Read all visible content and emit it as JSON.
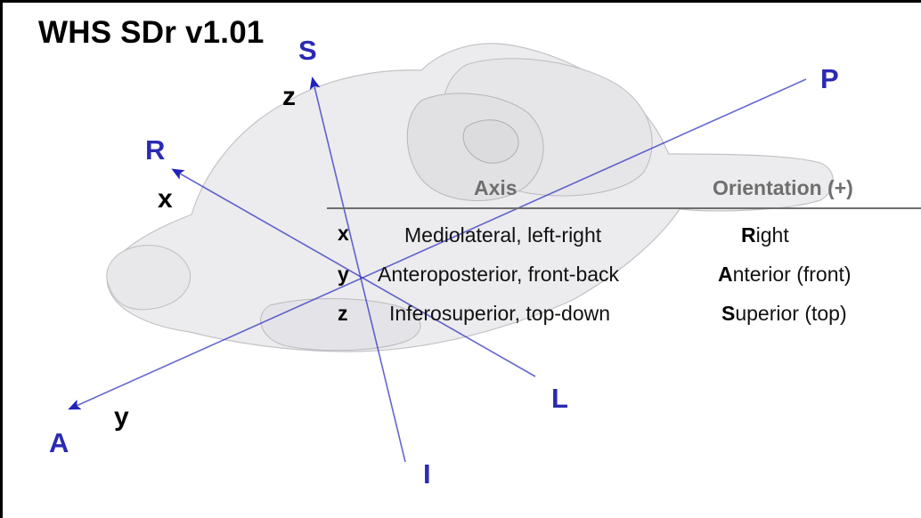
{
  "title": "WHS SDr v1.01",
  "axes": {
    "x": {
      "var_label": "x",
      "positive_label": "R",
      "negative_label": "L"
    },
    "y": {
      "var_label": "y",
      "positive_label": "A",
      "negative_label": "P"
    },
    "z": {
      "var_label": "z",
      "positive_label": "S",
      "negative_label": "I"
    }
  },
  "colors": {
    "axis_color": "#2222bb",
    "label_color": "#2a2ab3",
    "brain_fill": "#e8e8ea",
    "brain_stroke": "#b8b8bc",
    "header_color": "#6e6e6e"
  },
  "table": {
    "headers": {
      "axis": "Axis",
      "orientation": "Orientation (+)"
    },
    "rows": [
      {
        "var": "x",
        "description": "Mediolateral, left-right",
        "orientation_initial": "R",
        "orientation_rest": "ight"
      },
      {
        "var": "y",
        "description": "Anteroposterior, front-back",
        "orientation_initial": "A",
        "orientation_rest": "nterior (front)"
      },
      {
        "var": "z",
        "description": "Inferosuperior, top-down",
        "orientation_initial": "S",
        "orientation_rest": "uperior (top)"
      }
    ]
  }
}
